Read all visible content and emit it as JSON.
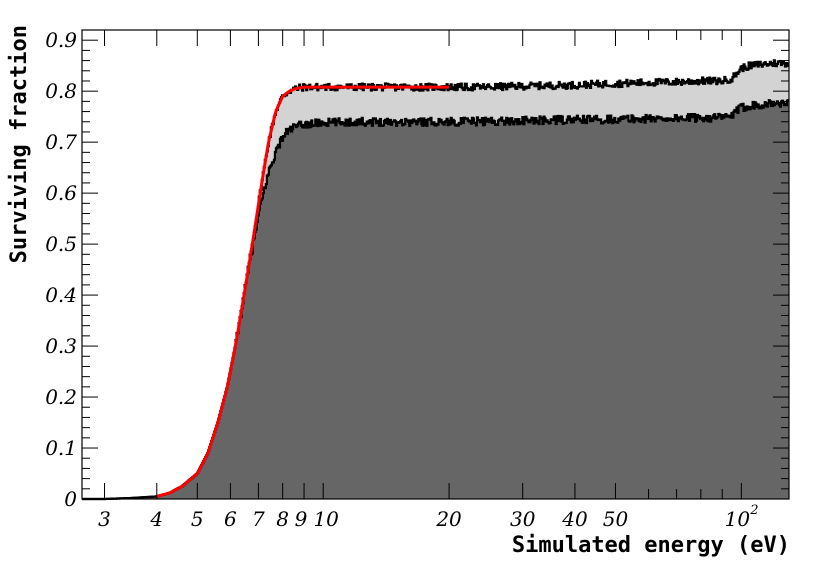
{
  "chart_data": {
    "type": "area",
    "xlabel": "Simulated energy (eV)",
    "ylabel": "Surviving fraction",
    "x_scale": "log",
    "xlim": [
      2.65,
      130
    ],
    "ylim": [
      0,
      0.92
    ],
    "grid": false,
    "legend": "none",
    "x_ticks": [
      {
        "value": 3,
        "label": "3"
      },
      {
        "value": 4,
        "label": "4"
      },
      {
        "value": 5,
        "label": "5"
      },
      {
        "value": 6,
        "label": "6"
      },
      {
        "value": 7,
        "label": "7"
      },
      {
        "value": 8,
        "label": "8"
      },
      {
        "value": 9,
        "label": "9"
      },
      {
        "value": 10,
        "label": "10"
      },
      {
        "value": 20,
        "label": "20"
      },
      {
        "value": 30,
        "label": "30"
      },
      {
        "value": 40,
        "label": "40"
      },
      {
        "value": 50,
        "label": "50"
      }
    ],
    "x_tick_exp": {
      "value": 100,
      "base": "10",
      "exp": "2"
    },
    "y_ticks": [
      {
        "value": 0,
        "label": "0"
      },
      {
        "value": 0.1,
        "label": "0.1"
      },
      {
        "value": 0.2,
        "label": "0.2"
      },
      {
        "value": 0.3,
        "label": "0.3"
      },
      {
        "value": 0.4,
        "label": "0.4"
      },
      {
        "value": 0.5,
        "label": "0.5"
      },
      {
        "value": 0.6,
        "label": "0.6"
      },
      {
        "value": 0.7,
        "label": "0.7"
      },
      {
        "value": 0.8,
        "label": "0.8"
      },
      {
        "value": 0.9,
        "label": "0.9"
      }
    ],
    "series": [
      {
        "role": "upper-histogram",
        "color": "#000000",
        "fill": "#d3d3d3",
        "x": [
          2.65,
          3.0,
          3.5,
          4.0,
          4.3,
          4.6,
          5.0,
          5.3,
          5.6,
          5.9,
          6.2,
          6.5,
          6.8,
          7.1,
          7.4,
          7.7,
          8.0,
          8.3,
          8.6,
          9.0,
          10,
          12,
          15,
          20,
          25,
          30,
          40,
          50,
          60,
          70,
          80,
          90,
          95,
          100,
          105,
          110,
          120,
          130
        ],
        "values": [
          0.0,
          0.0,
          0.002,
          0.005,
          0.012,
          0.025,
          0.05,
          0.09,
          0.15,
          0.22,
          0.31,
          0.41,
          0.51,
          0.61,
          0.7,
          0.76,
          0.79,
          0.8,
          0.805,
          0.808,
          0.808,
          0.808,
          0.808,
          0.808,
          0.808,
          0.81,
          0.812,
          0.815,
          0.817,
          0.818,
          0.82,
          0.82,
          0.825,
          0.845,
          0.85,
          0.852,
          0.855,
          0.855
        ]
      },
      {
        "role": "lower-histogram",
        "color": "#000000",
        "fill": "#666666",
        "x": [
          2.65,
          3.0,
          3.5,
          4.0,
          4.3,
          4.6,
          5.0,
          5.3,
          5.6,
          5.9,
          6.2,
          6.5,
          6.8,
          7.1,
          7.4,
          7.7,
          8.0,
          8.3,
          8.6,
          9.0,
          10,
          12,
          15,
          20,
          25,
          30,
          40,
          50,
          60,
          70,
          80,
          90,
          95,
          100,
          105,
          110,
          120,
          130
        ],
        "values": [
          0.0,
          0.0,
          0.002,
          0.005,
          0.012,
          0.025,
          0.05,
          0.09,
          0.15,
          0.22,
          0.31,
          0.41,
          0.5,
          0.58,
          0.64,
          0.68,
          0.71,
          0.725,
          0.73,
          0.735,
          0.738,
          0.74,
          0.74,
          0.74,
          0.741,
          0.742,
          0.744,
          0.745,
          0.746,
          0.747,
          0.748,
          0.748,
          0.752,
          0.768,
          0.772,
          0.774,
          0.776,
          0.776
        ]
      },
      {
        "role": "fit",
        "color": "#ff0000",
        "x": [
          4.0,
          4.3,
          4.6,
          5.0,
          5.3,
          5.6,
          5.9,
          6.2,
          6.5,
          6.8,
          7.1,
          7.4,
          7.7,
          8.0,
          8.3,
          8.6,
          9.0,
          10,
          12,
          15,
          20
        ],
        "values": [
          0.005,
          0.012,
          0.025,
          0.05,
          0.09,
          0.15,
          0.22,
          0.31,
          0.41,
          0.51,
          0.61,
          0.7,
          0.76,
          0.79,
          0.8,
          0.805,
          0.808,
          0.808,
          0.808,
          0.808,
          0.808
        ]
      }
    ]
  }
}
